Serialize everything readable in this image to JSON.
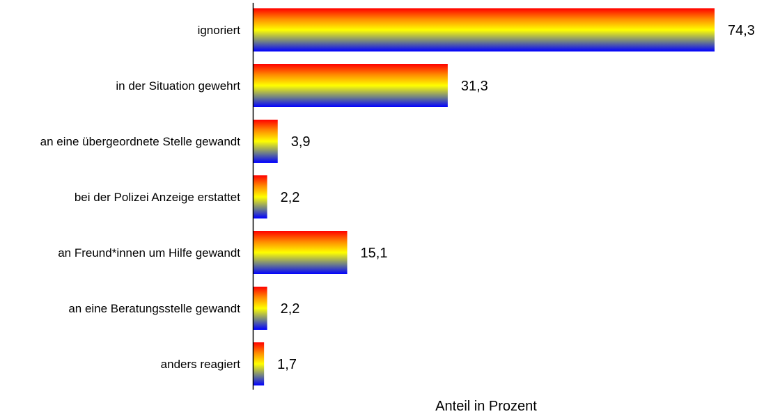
{
  "chart_data": {
    "type": "bar",
    "orientation": "horizontal",
    "categories": [
      "ignoriert",
      "in der Situation gewehrt",
      "an eine übergeordnete Stelle gewandt",
      "bei der Polizei Anzeige erstattet",
      "an Freund*innen um Hilfe gewandt",
      "an eine Beratungsstelle gewandt",
      "anders reagiert"
    ],
    "values": [
      74.3,
      31.3,
      3.9,
      2.2,
      15.1,
      2.2,
      1.7
    ],
    "value_labels": [
      "74,3",
      "31,3",
      "3,9",
      "2,2",
      "15,1",
      "2,2",
      "1,7"
    ],
    "title": "",
    "xlabel": "Anteil in Prozent",
    "ylabel": "",
    "xlim": [
      0,
      80
    ],
    "grid": false,
    "legend": "none",
    "bar_fill": "rainbow-gradient",
    "gradient_colors": [
      "#ff0000",
      "#ff8c00",
      "#ffff00",
      "#6b7b8c",
      "#0000ff"
    ]
  }
}
